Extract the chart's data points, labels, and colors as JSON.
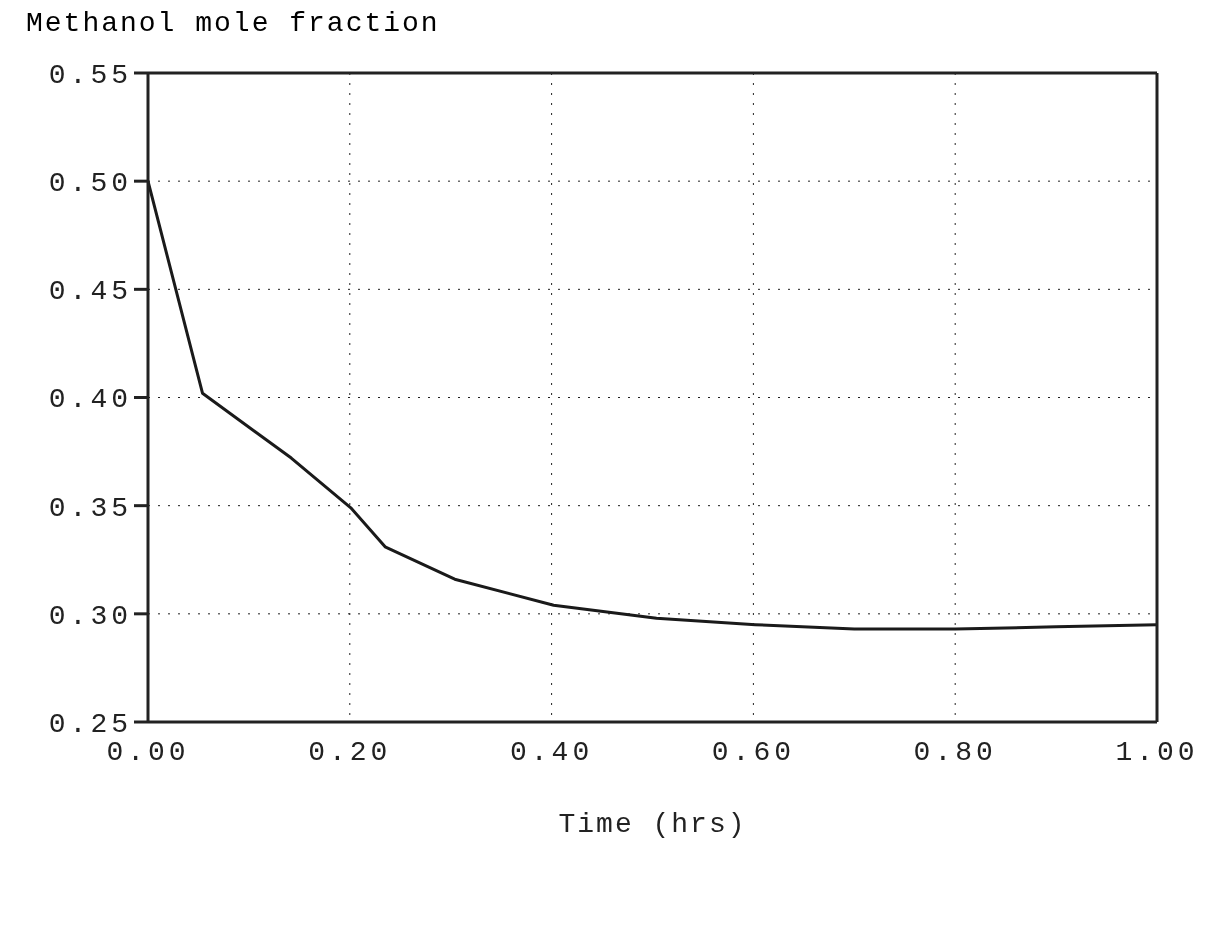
{
  "chart_data": {
    "type": "line",
    "title": "Methanol mole fraction",
    "xlabel": "Time (hrs)",
    "x": [
      0,
      0.054,
      0.142,
      0.201,
      0.235,
      0.304,
      0.402,
      0.504,
      0.602,
      0.7,
      0.8,
      0.9,
      1.0
    ],
    "series": [
      {
        "color": "#1a1a1a",
        "values": [
          0.5,
          0.402,
          0.372,
          0.349,
          0.331,
          0.316,
          0.304,
          0.298,
          0.295,
          0.293,
          0.293,
          0.294,
          0.295
        ]
      }
    ],
    "xlim": [
      0,
      1
    ],
    "ylim": [
      0.25,
      0.55
    ],
    "xticks": [
      {
        "value": 0,
        "label": "0.00"
      },
      {
        "value": 0.2,
        "label": "0.20"
      },
      {
        "value": 0.4,
        "label": "0.40"
      },
      {
        "value": 0.6,
        "label": "0.60"
      },
      {
        "value": 0.8,
        "label": "0.80"
      },
      {
        "value": 1,
        "label": "1.00"
      }
    ],
    "yticks": [
      {
        "value": 0.25,
        "label": "0.25"
      },
      {
        "value": 0.3,
        "label": "0.30"
      },
      {
        "value": 0.35,
        "label": "0.35"
      },
      {
        "value": 0.4,
        "label": "0.40"
      },
      {
        "value": 0.45,
        "label": "0.45"
      },
      {
        "value": 0.5,
        "label": "0.50"
      },
      {
        "value": 0.55,
        "label": "0.55"
      }
    ],
    "grid": true,
    "marker": "none",
    "line_style": "solid"
  }
}
